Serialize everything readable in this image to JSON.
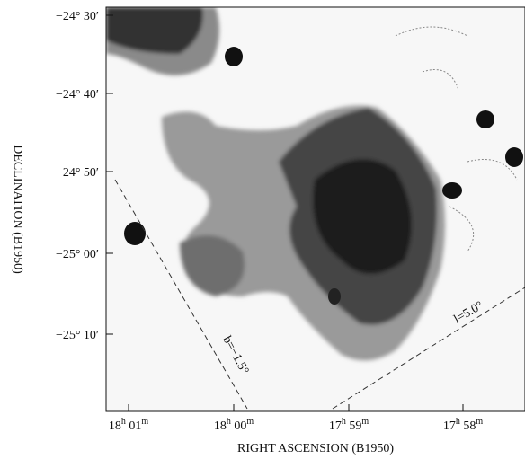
{
  "figure": {
    "x_label": "RIGHT ASCENSION (B1950)",
    "y_label": "DECLINATION (B1950)",
    "x_ticks": [
      {
        "hours": "18",
        "h": "h",
        "minutes": "01",
        "m": "m"
      },
      {
        "hours": "18",
        "h": "h",
        "minutes": "00",
        "m": "m"
      },
      {
        "hours": "17",
        "h": "h",
        "minutes": "59",
        "m": "m"
      },
      {
        "hours": "17",
        "h": "h",
        "minutes": "58",
        "m": "m"
      }
    ],
    "y_ticks": [
      "−24° 30′",
      "−24° 40′",
      "−24° 50′",
      "−25° 00′",
      "−25° 10′"
    ],
    "annotations": [
      "b=−1.5°",
      "l=5.0°"
    ]
  }
}
